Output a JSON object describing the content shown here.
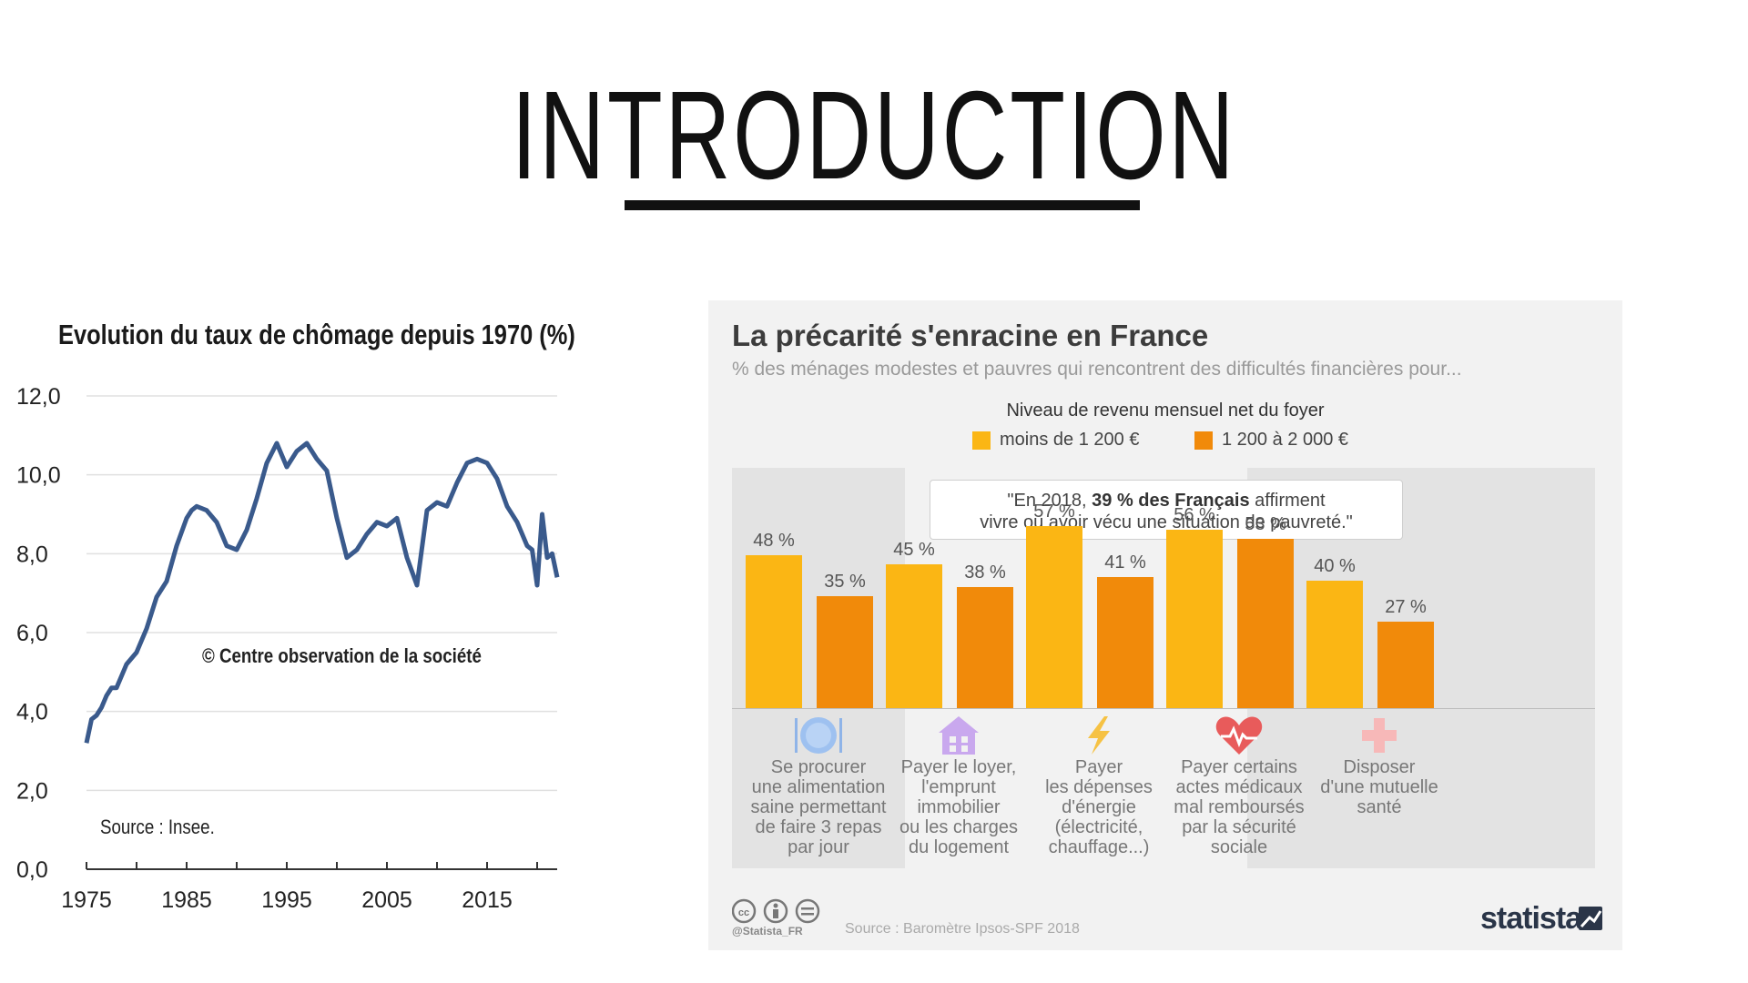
{
  "slide": {
    "title": "INTRODUCTION"
  },
  "chart_data": [
    {
      "type": "line",
      "title": "Evolution du taux de chômage depuis 1970  (%)",
      "xlabel": "",
      "ylabel": "",
      "xlim": [
        1975,
        2022
      ],
      "ylim": [
        0,
        12
      ],
      "yticks": [
        "0,0",
        "2,0",
        "4,0",
        "6,0",
        "8,0",
        "10,0",
        "12,0"
      ],
      "xticks": [
        "1975",
        "1985",
        "1995",
        "2005",
        "2015"
      ],
      "grid": true,
      "line_color": "#3a5a8c",
      "annotation": "© Centre observation de la société",
      "source": "Source : Insee.",
      "x": [
        1975,
        1975.5,
        1976,
        1976.5,
        1977,
        1977.5,
        1978,
        1978.5,
        1979,
        1980,
        1981,
        1982,
        1983,
        1984,
        1985,
        1985.5,
        1986,
        1987,
        1988,
        1989,
        1990,
        1991,
        1992,
        1993,
        1994,
        1995,
        1996,
        1997,
        1998,
        1999,
        2000,
        2001,
        2002,
        2003,
        2004,
        2005,
        2006,
        2007,
        2008,
        2009,
        2010,
        2011,
        2012,
        2013,
        2014,
        2015,
        2016,
        2017,
        2018,
        2019,
        2019.5,
        2020,
        2020.5,
        2021,
        2021.5,
        2022
      ],
      "y": [
        3.2,
        3.8,
        3.9,
        4.1,
        4.4,
        4.6,
        4.6,
        4.9,
        5.2,
        5.5,
        6.1,
        6.9,
        7.3,
        8.2,
        8.9,
        9.1,
        9.2,
        9.1,
        8.8,
        8.2,
        8.1,
        8.6,
        9.4,
        10.3,
        10.8,
        10.2,
        10.6,
        10.8,
        10.4,
        10.1,
        8.9,
        7.9,
        8.1,
        8.5,
        8.8,
        8.7,
        8.9,
        7.9,
        7.2,
        9.1,
        9.3,
        9.2,
        9.8,
        10.3,
        10.4,
        10.3,
        9.9,
        9.2,
        8.8,
        8.2,
        8.1,
        7.2,
        9.0,
        7.9,
        8.0,
        7.4
      ]
    },
    {
      "type": "bar",
      "title": "La précarité s'enracine en France",
      "subtitle": "% des ménages modestes et pauvres qui rencontrent des difficultés financières pour...",
      "legend_title": "Niveau de revenu mensuel net du foyer",
      "categories": [
        "Se procurer\nune alimentation\nsaine permettant\nde faire 3 repas\npar jour",
        "Payer le loyer,\nl'emprunt\nimmobilier\nou les charges\ndu logement",
        "Payer\nles dépenses\nd'énergie\n(électricité,\nchauffage...)",
        "Payer certains\nactes médicaux\nmal remboursés\npar la sécurité\nsociale",
        "Disposer\nd'une mutuelle\nsanté"
      ],
      "series": [
        {
          "name": "moins de 1 200 €",
          "color": "#fbb614",
          "values": [
            48,
            45,
            57,
            56,
            40
          ],
          "labels": [
            "48 %",
            "45 %",
            "57 %",
            "56 %",
            "40 %"
          ]
        },
        {
          "name": "1 200 à 2 000 €",
          "color": "#f18a0a",
          "values": [
            35,
            38,
            41,
            53,
            27
          ],
          "labels": [
            "35 %",
            "38 %",
            "41 %",
            "53 %",
            "27 %"
          ]
        }
      ],
      "icons": [
        "plate-icon",
        "house-icon",
        "lightning-icon",
        "heart-icon",
        "cross-icon"
      ],
      "quote": {
        "pre": "\"En 2018, ",
        "bold": "39 % des Français",
        "post": " affirment",
        "line2": "vivre ou avoir vécu une situation de pauvreté.\""
      },
      "handle": "@Statista_FR",
      "source": "Source : Baromètre Ipsos-SPF 2018",
      "brand": "statista"
    }
  ]
}
